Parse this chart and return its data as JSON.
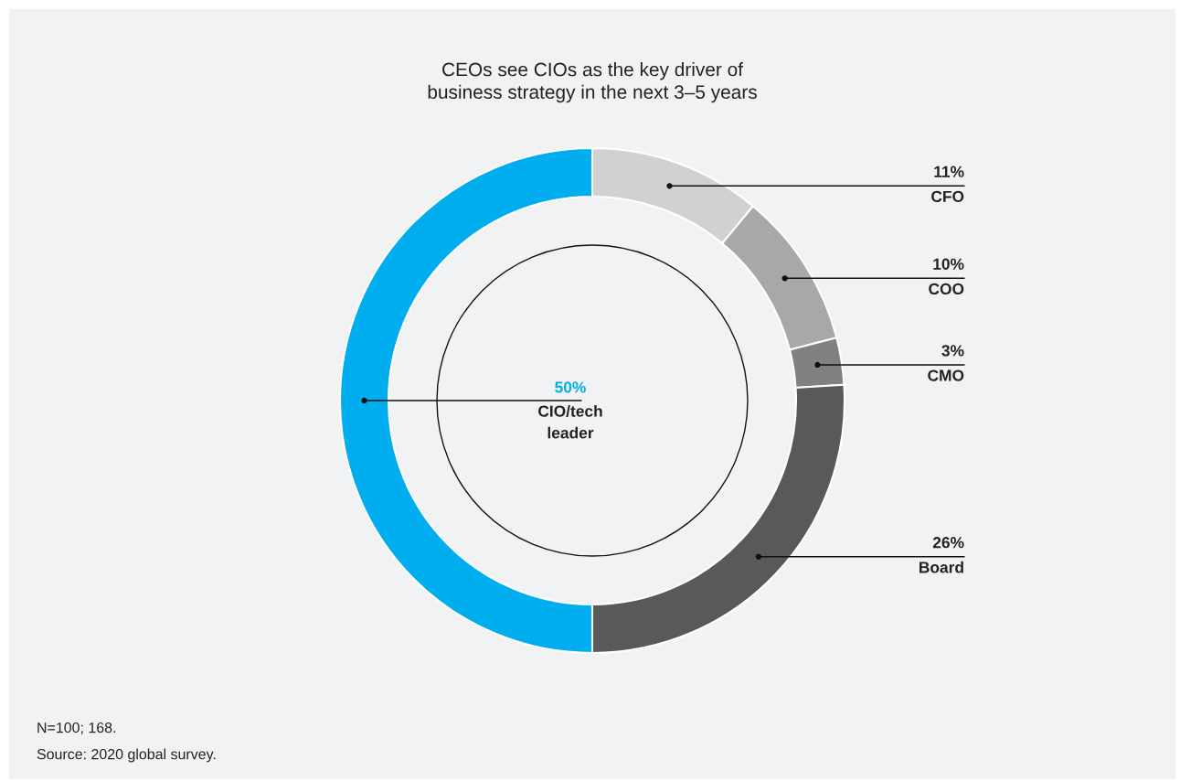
{
  "chart_data": {
    "type": "donut",
    "title": "CEOs see CIOs as the key driver of\nbusiness strategy in the next 3–5 years",
    "categories": [
      "CFO",
      "COO",
      "CMO",
      "Board",
      "CIO/tech\nleader"
    ],
    "values": [
      11,
      10,
      3,
      26,
      50
    ],
    "value_labels": [
      "11%",
      "10%",
      "3%",
      "26%",
      "50%"
    ],
    "colors": [
      "#d0d1d3",
      "#a7a8aa",
      "#808183",
      "#58595b",
      "#00aeef"
    ],
    "annotations": [
      "N=100; 168.",
      "Source: 2020 global survey."
    ]
  }
}
